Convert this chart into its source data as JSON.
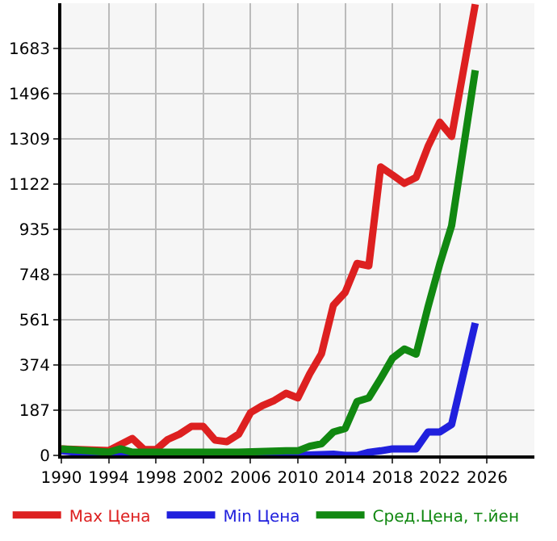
{
  "chart_data": {
    "type": "line",
    "series": [
      {
        "name": "Max Цена",
        "color": "#dd2020",
        "x": [
          1990,
          1994,
          1996,
          1997,
          1998,
          1999,
          2000,
          2001,
          2002,
          2003,
          2004,
          2005,
          2006,
          2007,
          2008,
          2009,
          2010,
          2011,
          2012,
          2013,
          2014,
          2015,
          2016,
          2017,
          2018,
          2019,
          2020,
          2021,
          2022,
          2023,
          2025
        ],
        "values": [
          27,
          20,
          70,
          24,
          24,
          66,
          88,
          120,
          120,
          63,
          57,
          88,
          177,
          206,
          227,
          257,
          238,
          337,
          421,
          621,
          674,
          794,
          784,
          1193,
          1160,
          1125,
          1150,
          1277,
          1378,
          1319,
          1866
        ]
      },
      {
        "name": "Min Цена",
        "color": "#2020dd",
        "x": [
          1990,
          1994,
          1995,
          1996,
          2000,
          2005,
          2010,
          2013,
          2014,
          2015,
          2016,
          2017,
          2018,
          2019,
          2020,
          2021,
          2022,
          2023,
          2025
        ],
        "values": [
          19,
          0,
          8,
          0,
          0,
          0,
          0,
          5,
          0,
          0,
          13,
          19,
          27,
          27,
          27,
          97,
          97,
          128,
          548
        ]
      },
      {
        "name": "Сред.Цена, т.йен",
        "color": "#118811",
        "x": [
          1990,
          1994,
          1995,
          1996,
          2000,
          2005,
          2009,
          2010,
          2011,
          2012,
          2013,
          2014,
          2015,
          2016,
          2017,
          2018,
          2019,
          2020,
          2021,
          2022,
          2023,
          2025
        ],
        "values": [
          27,
          13,
          27,
          13,
          13,
          13,
          19,
          19,
          38,
          48,
          97,
          111,
          223,
          238,
          318,
          402,
          440,
          419,
          613,
          792,
          950,
          1593
        ]
      }
    ],
    "xlim": [
      1990,
      2030
    ],
    "xticks": [
      1990,
      1994,
      1998,
      2002,
      2006,
      2010,
      2014,
      2018,
      2022,
      2026
    ],
    "ylim": [
      0,
      1870
    ],
    "yticks": [
      0,
      187,
      374,
      561,
      748,
      935,
      1122,
      1309,
      1496,
      1683
    ],
    "grid": true,
    "legend": "bottom",
    "marker": "none",
    "line_style": "solid"
  }
}
